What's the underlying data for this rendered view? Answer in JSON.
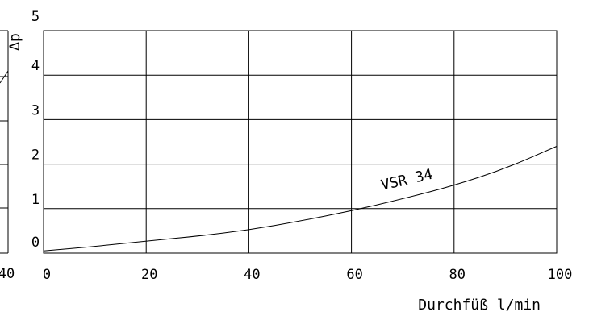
{
  "chart_data": {
    "type": "line",
    "ylabel": "∆p",
    "xlabel": "Durchfüß l/min",
    "xlim": [
      0,
      100
    ],
    "ylim": [
      0,
      5
    ],
    "grid": true,
    "x_ticks": [
      "0",
      "20",
      "40",
      "60",
      "80",
      "100"
    ],
    "y_ticks": [
      "0",
      "1",
      "2",
      "3",
      "4",
      "5"
    ],
    "left_fragment": {
      "tick_label": "40"
    },
    "series": [
      {
        "name": "VSR 34",
        "x": [
          0,
          10,
          20,
          30,
          40,
          50,
          60,
          70,
          80,
          90,
          100
        ],
        "y": [
          0.05,
          0.15,
          0.27,
          0.38,
          0.52,
          0.72,
          0.95,
          1.22,
          1.52,
          1.9,
          2.4
        ]
      }
    ]
  }
}
